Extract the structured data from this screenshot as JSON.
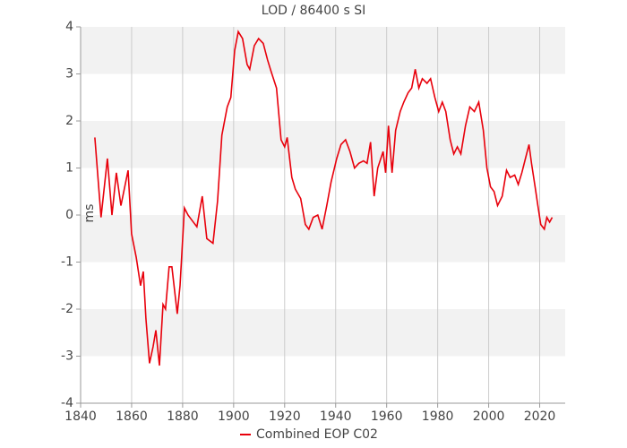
{
  "chart_data": {
    "type": "line",
    "title": "LOD / 86400 s SI",
    "ylabel": "ms",
    "x": [
      1845.6,
      1848,
      1850.5,
      1852.3,
      1854,
      1855.8,
      1858.6,
      1860,
      1861.8,
      1863.5,
      1864.6,
      1865.6,
      1867,
      1868.4,
      1869.5,
      1870.9,
      1872.3,
      1873.3,
      1874.7,
      1875.8,
      1877.9,
      1879,
      1880.7,
      1882.1,
      1883.5,
      1885.6,
      1887.7,
      1889.5,
      1891.9,
      1893.7,
      1895.4,
      1897.5,
      1898.9,
      1900.4,
      1901.8,
      1903.5,
      1905.3,
      1906.3,
      1908.1,
      1909.8,
      1911.6,
      1913.3,
      1914.7,
      1916.8,
      1918.6,
      1920,
      1921,
      1922.8,
      1924.2,
      1926.3,
      1928.1,
      1929.5,
      1931.2,
      1933,
      1934.7,
      1936.5,
      1938.2,
      1940.4,
      1942.1,
      1943.9,
      1945.6,
      1947.4,
      1949.1,
      1950.9,
      1952.3,
      1953.7,
      1955.1,
      1956.5,
      1958.6,
      1959.6,
      1960.7,
      1962.1,
      1963.5,
      1965.3,
      1966.7,
      1968.4,
      1969.8,
      1971.2,
      1972.6,
      1974,
      1975.8,
      1977.2,
      1978.9,
      1980.4,
      1981.8,
      1983.2,
      1984.9,
      1986.3,
      1987.7,
      1989.1,
      1990.9,
      1992.6,
      1994.4,
      1996.1,
      1997.9,
      1999.3,
      2000.7,
      2002.1,
      2003.5,
      2005.3,
      2007,
      2008.4,
      2010.2,
      2011.6,
      2013,
      2014.4,
      2015.8,
      2016.8,
      2018.2,
      2019.3,
      2020.4,
      2021.8,
      2022.8,
      2023.9,
      2024.9
    ],
    "series": [
      {
        "name": "Combined EOP C02",
        "color": "#e8000b",
        "values": [
          1.65,
          -0.05,
          1.2,
          0.0,
          0.9,
          0.2,
          0.95,
          -0.4,
          -0.9,
          -1.5,
          -1.2,
          -2.2,
          -3.15,
          -2.8,
          -2.45,
          -3.2,
          -1.9,
          -2.0,
          -1.1,
          -1.1,
          -2.1,
          -1.5,
          0.15,
          0.0,
          -0.1,
          -0.25,
          0.4,
          -0.5,
          -0.6,
          0.3,
          1.7,
          2.3,
          2.5,
          3.5,
          3.9,
          3.75,
          3.2,
          3.1,
          3.6,
          3.75,
          3.65,
          3.3,
          3.05,
          2.7,
          1.6,
          1.45,
          1.65,
          0.8,
          0.55,
          0.35,
          -0.2,
          -0.3,
          -0.05,
          0.0,
          -0.3,
          0.2,
          0.7,
          1.2,
          1.5,
          1.6,
          1.35,
          1.0,
          1.1,
          1.15,
          1.1,
          1.55,
          0.4,
          1.0,
          1.35,
          0.9,
          1.9,
          0.9,
          1.8,
          2.2,
          2.4,
          2.6,
          2.7,
          3.1,
          2.7,
          2.9,
          2.8,
          2.9,
          2.5,
          2.2,
          2.4,
          2.2,
          1.6,
          1.3,
          1.45,
          1.3,
          1.9,
          2.3,
          2.2,
          2.4,
          1.8,
          1.0,
          0.6,
          0.5,
          0.2,
          0.4,
          0.95,
          0.8,
          0.85,
          0.65,
          0.9,
          1.2,
          1.5,
          1.1,
          0.6,
          0.2,
          -0.2,
          -0.3,
          -0.05,
          -0.15,
          -0.05
        ]
      }
    ],
    "xlim": [
      1840,
      2030
    ],
    "xticks": [
      1840,
      1860,
      1880,
      1900,
      1920,
      1940,
      1960,
      1980,
      2000,
      2020
    ],
    "ylim": [
      -4,
      4
    ],
    "yticks": [
      -4,
      -3,
      -2,
      -1,
      0,
      1,
      2,
      3,
      4
    ],
    "grid": true,
    "legend": "bottom"
  }
}
